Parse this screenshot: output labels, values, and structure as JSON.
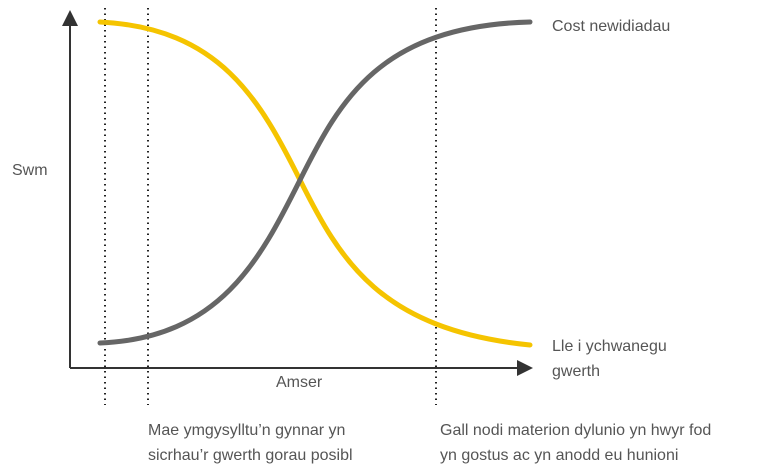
{
  "y_axis_label": "Swm",
  "x_axis_label": "Amser",
  "curves": [
    {
      "label": [
        "Cost newidiadau"
      ]
    },
    {
      "label": [
        "Lle i ychwanegu",
        "gwerth"
      ]
    }
  ],
  "notes": [
    {
      "lines": [
        "Mae ymgysylltu’n gynnar yn",
        "sicrhau’r gwerth gorau posibl"
      ]
    },
    {
      "lines": [
        "Gall nodi materion dylunio yn hwyr fod",
        "yn gostus ac yn anodd eu hunioni"
      ]
    }
  ]
}
